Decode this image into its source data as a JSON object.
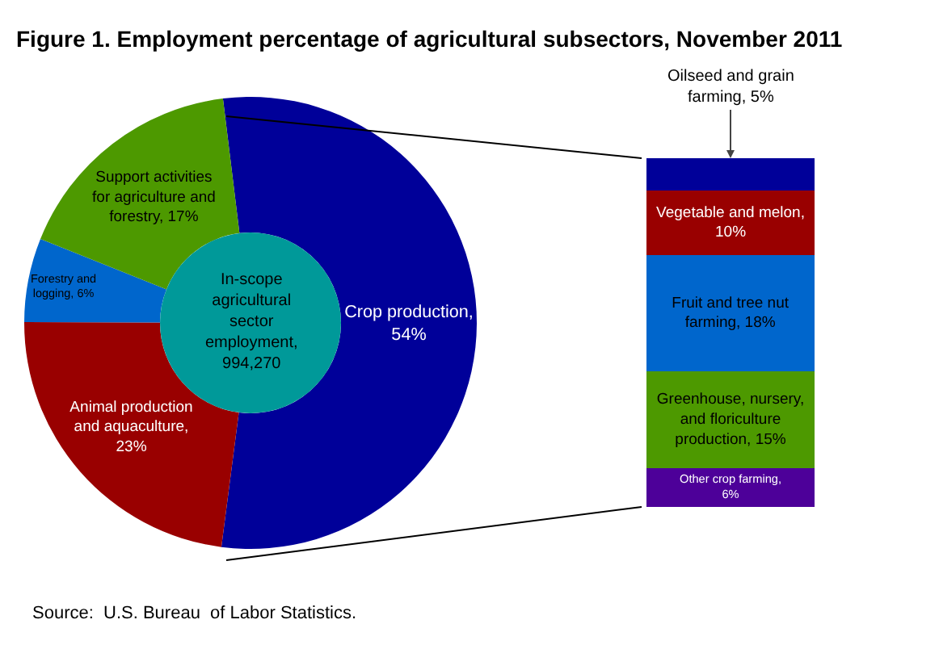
{
  "chart_data": [
    {
      "type": "donut",
      "title": "Figure 1. Employment percentage of agricultural subsectors, November 2011",
      "categories": [
        "Crop production",
        "Animal production and aquaculture",
        "Forestry and logging",
        "Support activities for agriculture and forestry"
      ],
      "values": [
        54,
        23,
        6,
        17
      ],
      "colors": [
        "#000099",
        "#990000",
        "#0066cc",
        "#4d9900"
      ],
      "value_labels": [
        ", 54%",
        ", 23%",
        ", 6%",
        ", 17%"
      ],
      "annotations": [
        "In-scope\nagricultural\nsector\nemployment,\n994,270",
        "Source:  U.S. Bureau  of Labor Statistics."
      ]
    },
    {
      "type": "bar",
      "stacked": true,
      "categories": [
        null
      ],
      "series": [
        {
          "name": "Other crop farming,",
          "color": "#4d0099",
          "values": [
            6
          ],
          "value_labels": [
            "6%"
          ]
        },
        {
          "name": "Greenhouse, nursery, and floriculture production,",
          "color": "#4d9900",
          "values": [
            15
          ],
          "value_labels": [
            "15%"
          ]
        },
        {
          "name": "Fruit and tree nut farming,",
          "color": "#0066cc",
          "values": [
            18
          ],
          "value_labels": [
            "18%"
          ]
        },
        {
          "name": "Vegetable and melon,",
          "color": "#990000",
          "values": [
            10
          ],
          "value_labels": [
            "10%"
          ]
        },
        {
          "name": "Oilseed and grain farming,",
          "color": "#000099",
          "values": [
            5
          ],
          "value_labels": [
            "5%"
          ]
        }
      ]
    }
  ]
}
